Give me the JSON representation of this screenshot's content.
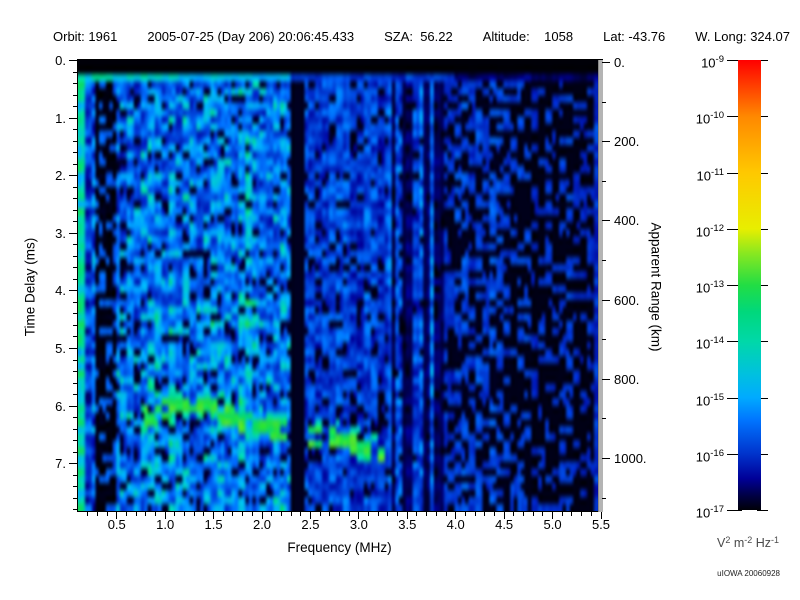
{
  "header": {
    "items": [
      "Orbit: 1961",
      "2005-07-25 (Day 206) 20:06:45.433",
      "SZA:  56.22",
      "Altitude:    1058",
      "Lat: -43.76",
      "W. Long: 324.07"
    ]
  },
  "axes": {
    "x": {
      "label": "Frequency (MHz)",
      "tick_values": [
        0.5,
        1.0,
        1.5,
        2.0,
        2.5,
        3.0,
        3.5,
        4.0,
        4.5,
        5.0,
        5.5
      ],
      "tick_labels": [
        "0.5",
        "1.0",
        "1.5",
        "2.0",
        "2.5",
        "3.0",
        "3.5",
        "4.0",
        "4.5",
        "5.0",
        "5.5"
      ],
      "minor_step": 0.1
    },
    "y_left": {
      "label": "Time Delay (ms)",
      "tick_values": [
        0,
        1,
        2,
        3,
        4,
        5,
        6,
        7
      ],
      "tick_labels": [
        "0.",
        "1.",
        "2.",
        "3.",
        "4.",
        "5.",
        "6.",
        "7."
      ],
      "minor_step": 0.2
    },
    "y_right": {
      "label": "Apparent Range (km)",
      "tick_values": [
        0,
        200,
        400,
        600,
        800,
        1000
      ],
      "tick_labels": [
        "0.",
        "200.",
        "400.",
        "600.",
        "800.",
        "1000."
      ],
      "minor_step": 100
    }
  },
  "colorbar": {
    "tick_exponents": [
      "-9",
      "-10",
      "-11",
      "-12",
      "-13",
      "-14",
      "-15",
      "-16",
      "-17"
    ],
    "unit_parts": [
      {
        "text": "V"
      },
      {
        "sup": "2"
      },
      {
        "text": " m"
      },
      {
        "sup": "-2"
      },
      {
        "text": " Hz"
      },
      {
        "sup": "-1"
      }
    ],
    "attribution": "uIOWA 20060928"
  },
  "colors": {
    "background": "#ffffff",
    "frame": "#000000",
    "right_edge_bar": "#b4b4b4",
    "text": "#000000"
  },
  "colormap": [
    {
      "p": 0.0,
      "c": "#000008"
    },
    {
      "p": 0.03,
      "c": "#000040"
    },
    {
      "p": 0.07,
      "c": "#000098"
    },
    {
      "p": 0.125,
      "c": "#0033cc"
    },
    {
      "p": 0.2,
      "c": "#0075ff"
    },
    {
      "p": 0.25,
      "c": "#00aaff"
    },
    {
      "p": 0.3,
      "c": "#00c0e0"
    },
    {
      "p": 0.375,
      "c": "#00d8a8"
    },
    {
      "p": 0.44,
      "c": "#00d87c"
    },
    {
      "p": 0.5,
      "c": "#22dd44"
    },
    {
      "p": 0.57,
      "c": "#88e820"
    },
    {
      "p": 0.625,
      "c": "#e8ee00"
    },
    {
      "p": 0.75,
      "c": "#ffc800"
    },
    {
      "p": 0.875,
      "c": "#ff8800"
    },
    {
      "p": 1.0,
      "c": "#ff0000"
    }
  ],
  "chart_data": {
    "type": "heatmap",
    "title": "Radar sounder ionogram, Orbit 1961, 2005-07-25 20:06:45.433",
    "xlabel": "Frequency (MHz)",
    "x_range": [
      0.1,
      5.5
    ],
    "x_ticks": [
      0.5,
      1.0,
      1.5,
      2.0,
      2.5,
      3.0,
      3.5,
      4.0,
      4.5,
      5.0,
      5.5
    ],
    "ylabel": "Time Delay (ms)",
    "y_range": [
      0,
      7.83
    ],
    "y_ticks": [
      0,
      1,
      2,
      3,
      4,
      5,
      6,
      7
    ],
    "y2label": "Apparent Range (km)",
    "y2_range": [
      0,
      1134
    ],
    "y2_ticks": [
      0,
      200,
      400,
      600,
      800,
      1000
    ],
    "zlabel": "V^2 m^-2 Hz^-1",
    "z_scale": "log",
    "z_exponent_range": [
      -17,
      -9
    ],
    "legend_position": "right-colorbar",
    "grid": false,
    "features": {
      "top_black_band_ms": [
        0,
        0.26
      ],
      "bright_noise_row_ms": 0.33,
      "bright_left_column_mhz": [
        0.1,
        0.175
      ],
      "dark_column_mhz": [
        0.28,
        0.5
      ],
      "bright_noise_band_mhz": [
        0.5,
        2.3
      ],
      "transmitter_gap_mhz": [
        2.3,
        2.44
      ],
      "striped_noise_band_mhz": [
        3.3,
        3.88
      ],
      "sparse_dark_band_mhz": [
        4.55,
        5.5
      ],
      "echo_trace_points": [
        [
          0.8,
          6.2
        ],
        [
          0.93,
          6.12
        ],
        [
          1.1,
          6.0
        ],
        [
          1.35,
          6.0
        ],
        [
          1.55,
          6.12
        ],
        [
          1.75,
          6.25
        ],
        [
          1.95,
          6.33
        ],
        [
          2.2,
          6.42
        ],
        [
          2.5,
          6.52
        ],
        [
          2.8,
          6.6
        ],
        [
          3.0,
          6.72
        ],
        [
          3.22,
          6.85
        ]
      ],
      "echo_trace_level": "~1e-13 (green)",
      "noise_floor_level": "~1e-16 to 1e-17 (dark blue/black)",
      "seed": 19610725
    }
  }
}
